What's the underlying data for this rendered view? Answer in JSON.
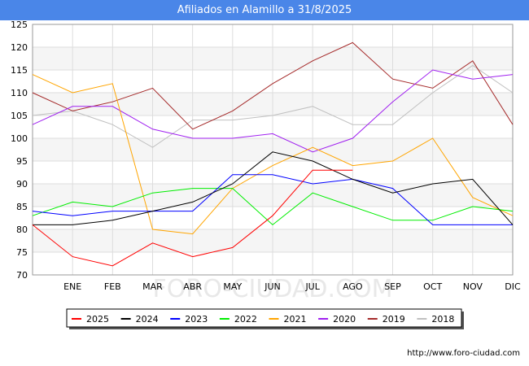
{
  "chart_data": {
    "type": "line",
    "title": "Afiliados en Alamillo a 31/8/2025",
    "categories": [
      "",
      "ENE",
      "FEB",
      "MAR",
      "ABR",
      "MAY",
      "JUN",
      "JUL",
      "AGO",
      "SEP",
      "OCT",
      "NOV",
      "DIC"
    ],
    "ylim": [
      70,
      125
    ],
    "yticks": [
      70,
      75,
      80,
      85,
      90,
      95,
      100,
      105,
      110,
      115,
      120,
      125
    ],
    "grid": true,
    "legend_position": "bottom",
    "series": [
      {
        "name": "2025",
        "color": "#ff0000",
        "values": [
          81,
          74,
          72,
          77,
          74,
          76,
          83,
          93,
          93,
          null,
          null,
          null,
          null
        ]
      },
      {
        "name": "2024",
        "color": "#000000",
        "values": [
          81,
          81,
          82,
          84,
          86,
          90,
          97,
          95,
          91,
          88,
          90,
          91,
          81
        ]
      },
      {
        "name": "2023",
        "color": "#0000ff",
        "values": [
          84,
          83,
          84,
          84,
          84,
          92,
          92,
          90,
          91,
          89,
          81,
          81,
          81
        ]
      },
      {
        "name": "2022",
        "color": "#00ee00",
        "values": [
          83,
          86,
          85,
          88,
          89,
          89,
          81,
          88,
          85,
          82,
          82,
          85,
          84
        ]
      },
      {
        "name": "2021",
        "color": "#ffa500",
        "values": [
          114,
          110,
          112,
          80,
          79,
          89,
          94,
          98,
          94,
          95,
          100,
          87,
          83
        ]
      },
      {
        "name": "2020",
        "color": "#a020f0",
        "values": [
          103,
          107,
          107,
          102,
          100,
          100,
          101,
          97,
          100,
          108,
          115,
          113,
          114
        ]
      },
      {
        "name": "2019",
        "color": "#a52a2a",
        "values": [
          110,
          106,
          108,
          111,
          102,
          106,
          112,
          117,
          121,
          113,
          111,
          117,
          103
        ]
      },
      {
        "name": "2018",
        "color": "#c0c0c0",
        "values": [
          105,
          106,
          103,
          98,
          104,
          104,
          105,
          107,
          103,
          103,
          110,
          116,
          110
        ]
      }
    ]
  },
  "watermark": "FORO-CIUDAD.COM",
  "source": "http://www.foro-ciudad.com"
}
